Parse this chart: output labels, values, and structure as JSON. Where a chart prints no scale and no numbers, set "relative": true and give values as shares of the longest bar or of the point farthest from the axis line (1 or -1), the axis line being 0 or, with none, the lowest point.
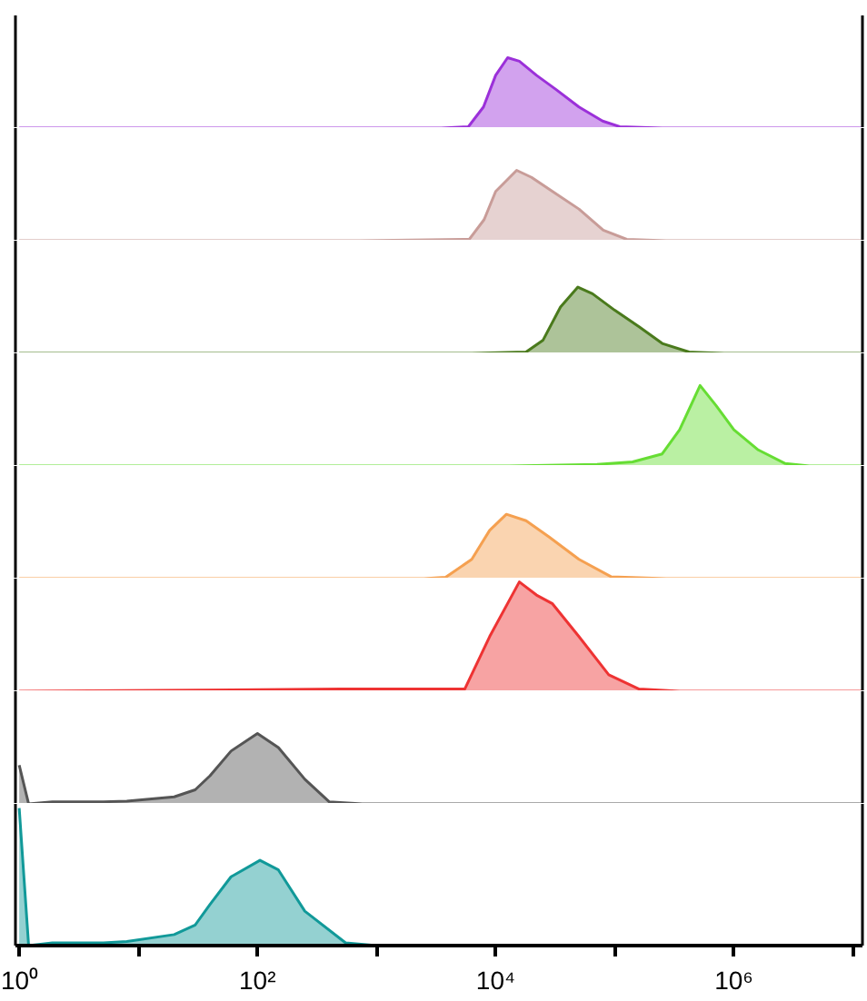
{
  "chart_data": [
    {
      "type": "area",
      "relative": true,
      "log": "x",
      "tick_labels": false,
      "xlim": [
        0.93,
        12000000
      ],
      "color": "#9b30d9",
      "x": [
        1,
        3500,
        5900,
        7900,
        10000,
        12600,
        15800,
        22000,
        32000,
        50000,
        79000,
        110000,
        250000,
        12000000
      ],
      "values": [
        0,
        0,
        0.02,
        0.3,
        0.75,
        1,
        0.95,
        0.75,
        0.55,
        0.3,
        0.1,
        0.02,
        0,
        0
      ]
    },
    {
      "type": "area",
      "relative": true,
      "log": "x",
      "tick_labels": false,
      "xlim": [
        0.93,
        12000000
      ],
      "color": "#c89c98",
      "x": [
        1,
        720,
        6000,
        8000,
        10000,
        15000,
        20000,
        30000,
        50000,
        80000,
        126000,
        270000,
        12000000
      ],
      "values": [
        0,
        0,
        0.02,
        0.3,
        0.7,
        1,
        0.9,
        0.7,
        0.45,
        0.15,
        0.02,
        0,
        0
      ]
    },
    {
      "type": "area",
      "relative": true,
      "log": "x",
      "tick_labels": false,
      "xlim": [
        0.93,
        12000000
      ],
      "color": "#4a7a1c",
      "x": [
        1,
        6300,
        18000,
        25000,
        35000,
        49000,
        65000,
        100000,
        160000,
        250000,
        420000,
        830000,
        12000000
      ],
      "values": [
        0,
        0,
        0.02,
        0.2,
        0.7,
        1,
        0.9,
        0.65,
        0.4,
        0.15,
        0.02,
        0,
        0
      ]
    },
    {
      "type": "area",
      "relative": true,
      "log": "x",
      "tick_labels": false,
      "xlim": [
        0.93,
        12000000
      ],
      "color": "#66dd33",
      "x": [
        1,
        13000,
        71000,
        141000,
        250000,
        350000,
        520000,
        710000,
        1000000,
        1600000,
        2700000,
        4300000,
        12000000
      ],
      "values": [
        0,
        0,
        0.02,
        0.05,
        0.15,
        0.45,
        1,
        0.75,
        0.45,
        0.2,
        0.03,
        0,
        0
      ]
    },
    {
      "type": "area",
      "relative": true,
      "log": "x",
      "tick_labels": false,
      "xlim": [
        0.93,
        12000000
      ],
      "color": "#f5a050",
      "x": [
        1,
        2500,
        3800,
        6300,
        8900,
        12300,
        18000,
        28000,
        50000,
        93000,
        270000,
        12000000
      ],
      "values": [
        0,
        0,
        0.02,
        0.3,
        0.75,
        1,
        0.9,
        0.65,
        0.3,
        0.03,
        0,
        0
      ]
    },
    {
      "type": "area",
      "relative": true,
      "log": "x",
      "tick_labels": false,
      "xlim": [
        0.93,
        12000000
      ],
      "color": "#ee3333",
      "x": [
        1,
        500,
        710,
        5500,
        8900,
        15800,
        22000,
        30000,
        50000,
        89000,
        160000,
        350000,
        12000000
      ],
      "values": [
        0,
        0.02,
        0.02,
        0.02,
        0.5,
        1,
        0.88,
        0.8,
        0.5,
        0.15,
        0.02,
        0,
        0
      ]
    },
    {
      "type": "area",
      "relative": true,
      "log": "x",
      "tick_labels": false,
      "xlim": [
        0.93,
        12000000
      ],
      "color": "#555555",
      "x": [
        1,
        1.2,
        1.9,
        2.9,
        3.8,
        5.1,
        8,
        20,
        30,
        40,
        60,
        100,
        150,
        250,
        400,
        760,
        12000000
      ],
      "values": [
        0.55,
        0,
        0.03,
        0.03,
        0.03,
        0.03,
        0.04,
        0.1,
        0.2,
        0.4,
        0.75,
        1,
        0.8,
        0.35,
        0.03,
        0,
        0
      ]
    },
    {
      "type": "area",
      "relative": true,
      "log": "x",
      "tick_labels": "x",
      "xlim": [
        0.93,
        12000000
      ],
      "color": "#119999",
      "x": [
        1,
        1.2,
        1.9,
        2.9,
        3.8,
        5.1,
        8,
        20,
        30,
        40,
        60,
        105,
        150,
        250,
        550,
        1000,
        12000000
      ],
      "values": [
        1,
        0,
        0.02,
        0.02,
        0.02,
        0.02,
        0.03,
        0.08,
        0.15,
        0.3,
        0.5,
        0.62,
        0.55,
        0.25,
        0.02,
        0,
        0
      ],
      "xticks": [
        {
          "value": 1,
          "label": "10⁰"
        },
        {
          "value": 10,
          "label": null
        },
        {
          "value": 100,
          "label": "10²"
        },
        {
          "value": 1000,
          "label": null
        },
        {
          "value": 10000,
          "label": "10⁴"
        },
        {
          "value": 100000,
          "label": null
        },
        {
          "value": 1000000,
          "label": "10⁶"
        },
        {
          "value": 10000000,
          "label": null
        }
      ]
    }
  ]
}
